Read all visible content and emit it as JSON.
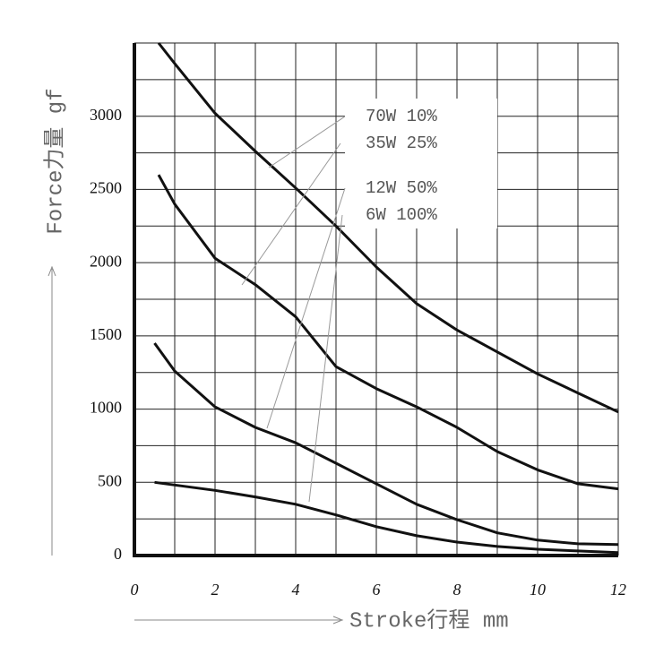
{
  "chart_data": {
    "type": "line",
    "y_label": "Force力量 gf",
    "x_label": "Stroke行程 mm",
    "xlim": [
      0,
      12
    ],
    "ylim": [
      0,
      3500
    ],
    "xticks": [
      0,
      2,
      4,
      6,
      8,
      10,
      12
    ],
    "yticks": [
      0,
      500,
      1000,
      1500,
      2000,
      2500,
      3000
    ],
    "xgrid": [
      0,
      1,
      2,
      3,
      4,
      5,
      6,
      7,
      8,
      9,
      10,
      11,
      12
    ],
    "ygrid": [
      0,
      250,
      500,
      750,
      1000,
      1250,
      1500,
      1750,
      2000,
      2250,
      2500,
      2750,
      3000,
      3250,
      3500
    ],
    "series": [
      {
        "name": "70W 10%",
        "color": "#111111",
        "x": [
          0.6,
          1,
          2,
          3,
          4,
          5,
          6,
          7,
          8,
          9,
          10,
          11,
          12
        ],
        "values": [
          3500,
          3360,
          3020,
          2760,
          2510,
          2250,
          1970,
          1720,
          1540,
          1390,
          1240,
          1110,
          980
        ]
      },
      {
        "name": "35W 25%",
        "color": "#111111",
        "x": [
          0.6,
          1,
          2,
          3,
          4,
          5,
          6,
          7,
          8,
          9,
          10,
          11,
          12
        ],
        "values": [
          2600,
          2400,
          2030,
          1850,
          1630,
          1290,
          1140,
          1015,
          875,
          710,
          585,
          490,
          455
        ]
      },
      {
        "name": "12W 50%",
        "color": "#111111",
        "x": [
          0.5,
          1,
          2,
          3,
          4,
          5,
          6,
          7,
          8,
          9,
          10,
          11,
          12
        ],
        "values": [
          1450,
          1260,
          1015,
          875,
          770,
          630,
          490,
          350,
          245,
          155,
          105,
          80,
          75
        ]
      },
      {
        "name": "6W 100%",
        "color": "#111111",
        "x": [
          0.5,
          2,
          3,
          4,
          5,
          6,
          7,
          8,
          9,
          10,
          11,
          12
        ],
        "values": [
          500,
          445,
          400,
          350,
          277,
          197,
          135,
          92,
          62,
          43,
          31,
          20
        ]
      }
    ]
  }
}
